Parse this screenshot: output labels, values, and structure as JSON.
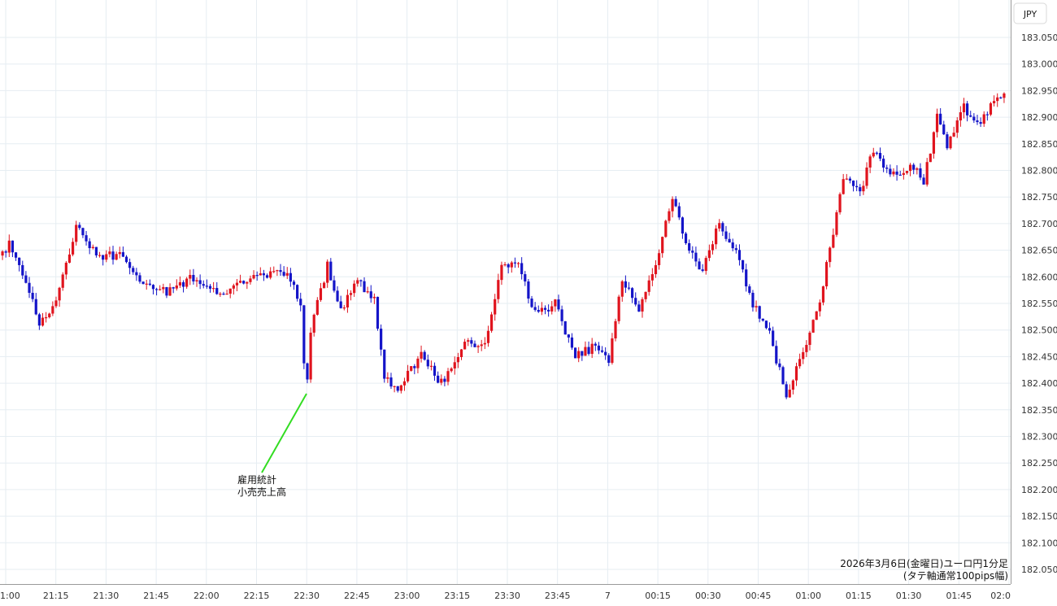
{
  "chart_data": {
    "type": "candlestick",
    "title": "2026年3月6日(金曜日)ユーロ円1分足",
    "subtitle": "(タテ軸通常100pips幅)",
    "currency": "JPY",
    "ylim": [
      182.05,
      183.08
    ],
    "grid": true,
    "colors": {
      "up": "#e0141e",
      "down": "#1414c8",
      "grid": "#e6edf2",
      "annotation": "#33dd22"
    },
    "y_ticks": [
      "183.050",
      "183.000",
      "182.950",
      "182.900",
      "182.850",
      "182.800",
      "182.750",
      "182.700",
      "182.650",
      "182.600",
      "182.550",
      "182.500",
      "182.450",
      "182.400",
      "182.350",
      "182.300",
      "182.250",
      "182.200",
      "182.150",
      "182.100",
      "182.050"
    ],
    "x_ticks": [
      "1:00",
      "21:15",
      "21:30",
      "21:45",
      "22:00",
      "22:15",
      "22:30",
      "22:45",
      "23:00",
      "23:15",
      "23:30",
      "23:45",
      "7",
      "00:15",
      "00:30",
      "00:45",
      "01:00",
      "01:15",
      "01:30",
      "01:45",
      "02:0"
    ],
    "annotation": {
      "lines": [
        "雇用統計",
        "小売売上高"
      ]
    },
    "price_path": [
      {
        "t": 0,
        "p": 182.64
      },
      {
        "t": 3,
        "p": 182.66
      },
      {
        "t": 8,
        "p": 182.59
      },
      {
        "t": 12,
        "p": 182.51
      },
      {
        "t": 17,
        "p": 182.55
      },
      {
        "t": 23,
        "p": 182.69
      },
      {
        "t": 30,
        "p": 182.64
      },
      {
        "t": 37,
        "p": 182.64
      },
      {
        "t": 42,
        "p": 182.59
      },
      {
        "t": 50,
        "p": 182.57
      },
      {
        "t": 58,
        "p": 182.6
      },
      {
        "t": 66,
        "p": 182.57
      },
      {
        "t": 72,
        "p": 182.59
      },
      {
        "t": 78,
        "p": 182.6
      },
      {
        "t": 86,
        "p": 182.61
      },
      {
        "t": 90,
        "p": 182.55
      },
      {
        "t": 91,
        "p": 182.44
      },
      {
        "t": 92,
        "p": 182.4
      },
      {
        "t": 93,
        "p": 182.5
      },
      {
        "t": 98,
        "p": 182.62
      },
      {
        "t": 102,
        "p": 182.54
      },
      {
        "t": 107,
        "p": 182.59
      },
      {
        "t": 112,
        "p": 182.56
      },
      {
        "t": 115,
        "p": 182.41
      },
      {
        "t": 119,
        "p": 182.39
      },
      {
        "t": 126,
        "p": 182.45
      },
      {
        "t": 132,
        "p": 182.4
      },
      {
        "t": 140,
        "p": 182.48
      },
      {
        "t": 145,
        "p": 182.47
      },
      {
        "t": 150,
        "p": 182.62
      },
      {
        "t": 155,
        "p": 182.62
      },
      {
        "t": 160,
        "p": 182.53
      },
      {
        "t": 166,
        "p": 182.55
      },
      {
        "t": 172,
        "p": 182.45
      },
      {
        "t": 178,
        "p": 182.47
      },
      {
        "t": 182,
        "p": 182.44
      },
      {
        "t": 186,
        "p": 182.6
      },
      {
        "t": 191,
        "p": 182.54
      },
      {
        "t": 196,
        "p": 182.62
      },
      {
        "t": 201,
        "p": 182.75
      },
      {
        "t": 205,
        "p": 182.66
      },
      {
        "t": 210,
        "p": 182.61
      },
      {
        "t": 215,
        "p": 182.7
      },
      {
        "t": 220,
        "p": 182.65
      },
      {
        "t": 225,
        "p": 182.55
      },
      {
        "t": 230,
        "p": 182.49
      },
      {
        "t": 235,
        "p": 182.38
      },
      {
        "t": 240,
        "p": 182.46
      },
      {
        "t": 245,
        "p": 182.55
      },
      {
        "t": 247,
        "p": 182.62
      },
      {
        "t": 252,
        "p": 182.78
      },
      {
        "t": 257,
        "p": 182.76
      },
      {
        "t": 261,
        "p": 182.84
      },
      {
        "t": 266,
        "p": 182.79
      },
      {
        "t": 272,
        "p": 182.81
      },
      {
        "t": 276,
        "p": 182.78
      },
      {
        "t": 280,
        "p": 182.9
      },
      {
        "t": 283,
        "p": 182.84
      },
      {
        "t": 288,
        "p": 182.92
      },
      {
        "t": 293,
        "p": 182.88
      },
      {
        "t": 296,
        "p": 182.93
      },
      {
        "t": 298,
        "p": 182.94
      }
    ]
  }
}
